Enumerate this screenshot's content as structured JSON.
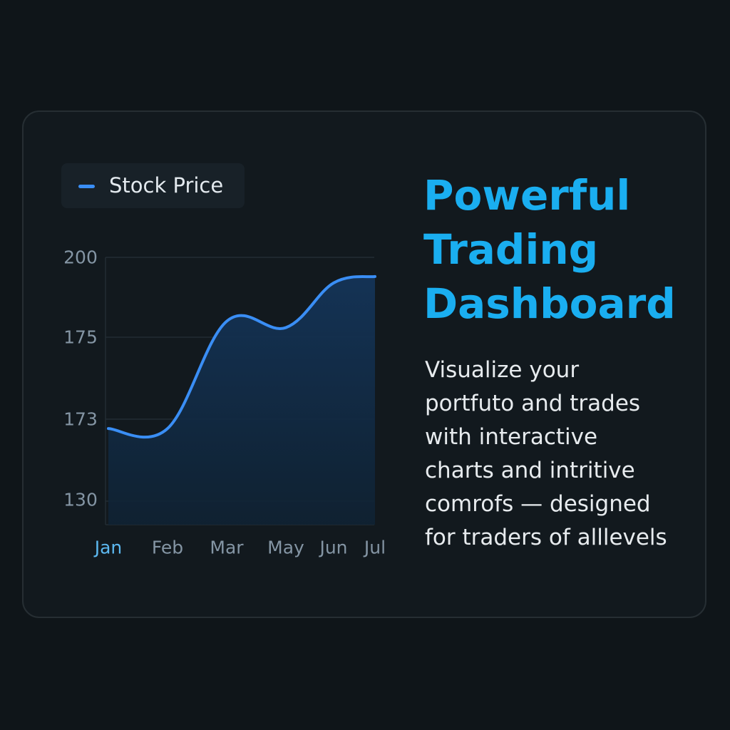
{
  "colors": {
    "background": "#0f1519",
    "card": "#12191e",
    "accent": "#1aaef0",
    "series_line": "#3a8ef5",
    "area_fill": "#123150",
    "grid": "#222c33",
    "axis_text": "#8495a4",
    "highlight_tick": "#5cb8f0"
  },
  "legend": {
    "label": "Stock Price"
  },
  "headline": {
    "lines": [
      "Powerful",
      "Trading",
      "Dashboard"
    ]
  },
  "description": {
    "lines": [
      "Visualize your",
      "portfuto and trades",
      "with interactive",
      "charts and intritive",
      "comrofs — designed",
      "for traders of alllevels"
    ]
  },
  "chart_data": {
    "type": "area",
    "categories": [
      "Jan",
      "Feb",
      "Mar",
      "May",
      "Jun",
      "Jul"
    ],
    "y_tick_labels": [
      "200",
      "175",
      "173",
      "130"
    ],
    "series": [
      {
        "name": "Stock Price",
        "points": [
          {
            "x": "Jan",
            "y": 168
          },
          {
            "x": "Feb",
            "y": 168
          },
          {
            "x": "Mar",
            "y": 180
          },
          {
            "x": "May",
            "y": 178
          },
          {
            "x": "Jun",
            "y": 192
          },
          {
            "x": "Jul",
            "y": 194
          }
        ]
      }
    ],
    "legend_position": "top-left",
    "grid": true,
    "highlighted_category": "Jan"
  }
}
